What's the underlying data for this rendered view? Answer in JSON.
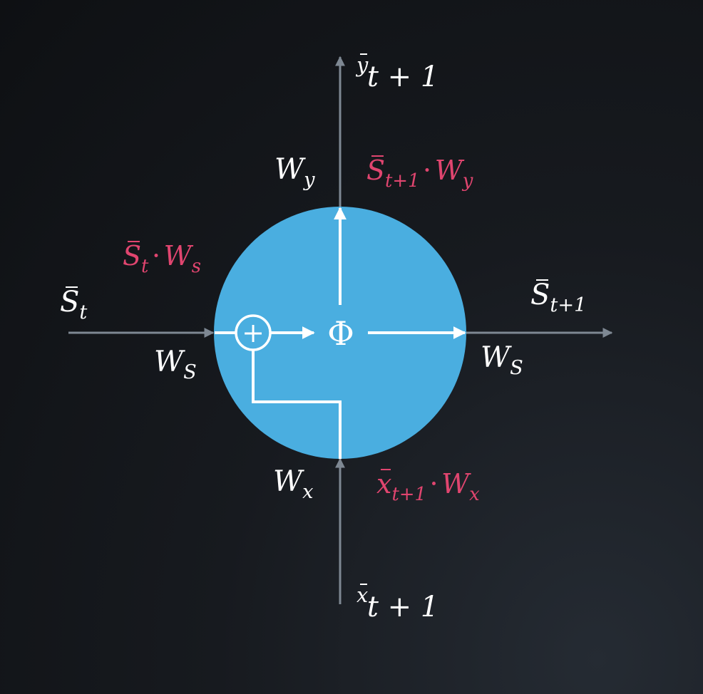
{
  "colors": {
    "background": "#14171b",
    "node": "#4aaee0",
    "arrow_external": "#7e8893",
    "arrow_internal": "#ffffff",
    "label": "#ffffff",
    "term": "#e0456f"
  },
  "node": {
    "function": "Φ",
    "sum_symbol": "+"
  },
  "labels": {
    "state_in": {
      "base": "S",
      "sub": "t"
    },
    "state_out": {
      "base": "S",
      "sub": "t+1"
    },
    "output": {
      "base": "y",
      "rest": "t + 1"
    },
    "input": {
      "base": "x",
      "rest": "t + 1"
    },
    "weight_y": {
      "base": "W",
      "sub": "y"
    },
    "weight_x": {
      "base": "W",
      "sub": "x"
    },
    "weight_s_left": {
      "base": "W",
      "sub": "S"
    },
    "weight_s_right": {
      "base": "W",
      "sub": "S"
    }
  },
  "terms": {
    "state_term": {
      "vec": "S",
      "vec_sub": "t",
      "w": "W",
      "w_sub": "s"
    },
    "output_term": {
      "vec": "S",
      "vec_sub": "t+1",
      "w": "W",
      "w_sub": "y"
    },
    "input_term": {
      "vec": "x",
      "vec_sub": "t+1",
      "w": "W",
      "w_sub": "x"
    }
  }
}
